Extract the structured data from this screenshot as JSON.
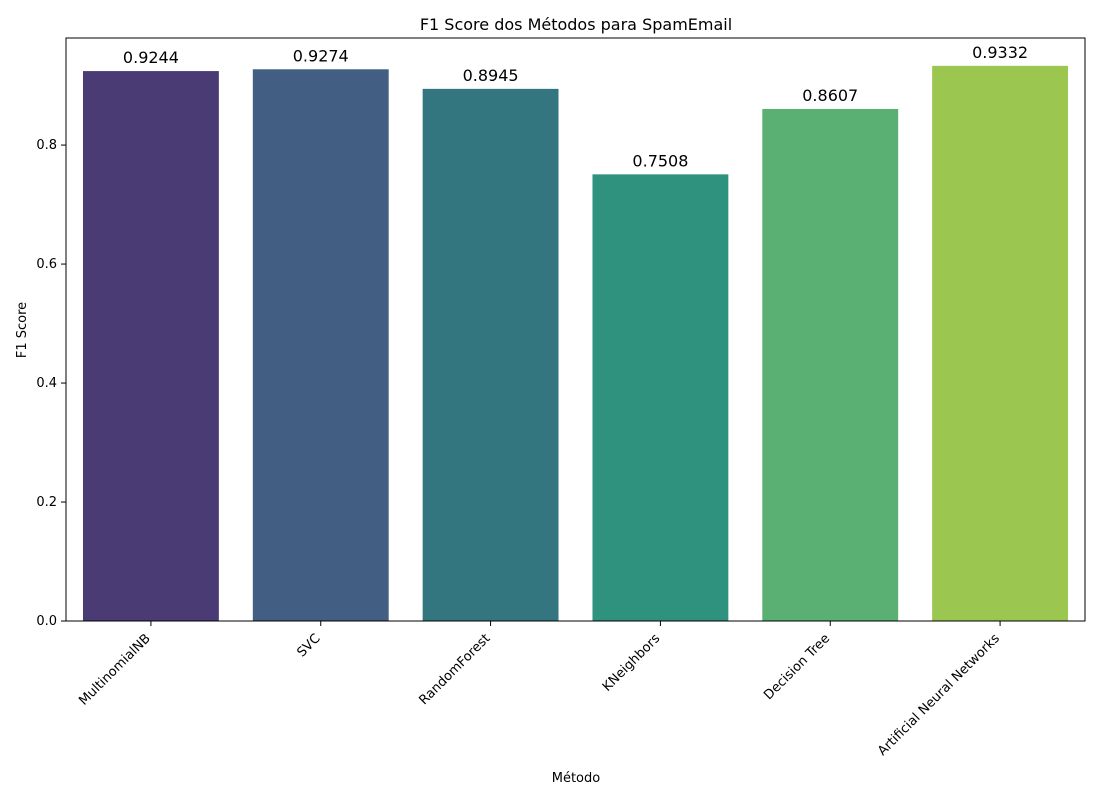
{
  "chart_data": {
    "type": "bar",
    "title": "F1 Score dos Métodos para SpamEmail",
    "xlabel": "Método",
    "ylabel": "F1 Score",
    "categories": [
      "MultinomialNB",
      "SVC",
      "RandomForest",
      "KNeighbors",
      "Decision Tree",
      "Artificial Neural Networks"
    ],
    "values": [
      0.9244,
      0.9274,
      0.8945,
      0.7508,
      0.8607,
      0.9332
    ],
    "data_labels": [
      "0.9244",
      "0.9274",
      "0.8945",
      "0.7508",
      "0.8607",
      "0.9332"
    ],
    "colors": [
      "#4a3b74",
      "#425e82",
      "#347680",
      "#2f927e",
      "#5ab072",
      "#9bc64f"
    ],
    "ylim": [
      0,
      0.98
    ],
    "yticks": [
      0.0,
      0.2,
      0.4,
      0.6,
      0.8
    ],
    "ytick_labels": [
      "0.0",
      "0.2",
      "0.4",
      "0.6",
      "0.8"
    ],
    "grid": false,
    "legend": false
  }
}
